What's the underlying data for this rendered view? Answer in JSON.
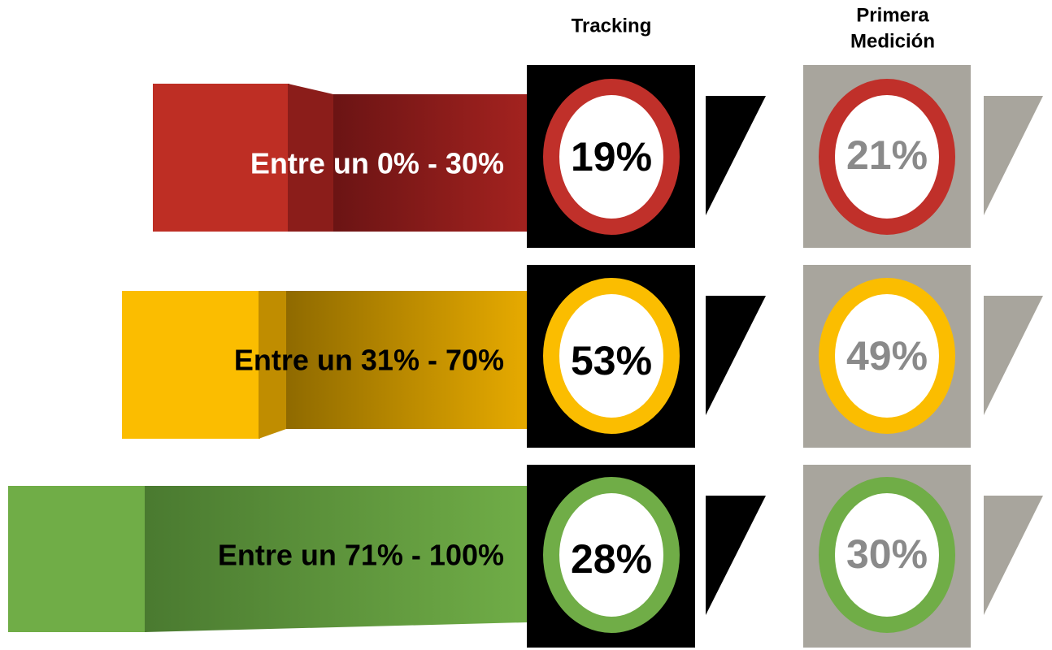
{
  "headers": {
    "tracking": "Tracking",
    "primera": [
      "Primera",
      "Medición"
    ]
  },
  "rows": [
    {
      "label": "Entre un 0% - 30%",
      "tracking": "19%",
      "primera": "21%"
    },
    {
      "label": "Entre un 31% - 70%",
      "tracking": "53%",
      "primera": "49%"
    },
    {
      "label": "Entre un 71% - 100%",
      "tracking": "28%",
      "primera": "30%"
    }
  ]
}
